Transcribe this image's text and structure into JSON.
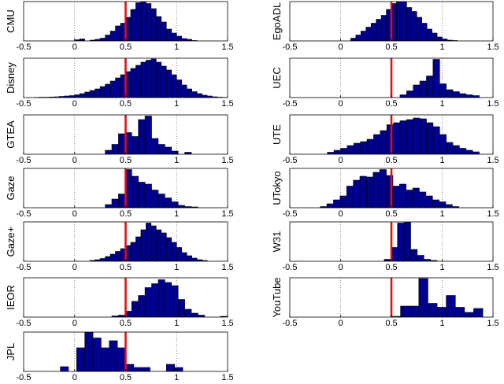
{
  "colors": {
    "bar_fill": "#00008f",
    "bar_edge": "#000000",
    "threshold_line": "#e01010",
    "grid": "#555555"
  },
  "chart_data": [
    {
      "type": "bar",
      "ylabel": "CMU",
      "xlim": [
        -0.5,
        1.5
      ],
      "ylim": [
        0,
        1
      ],
      "xticks": [
        "-0.5",
        "0",
        "0.5",
        "1",
        "1.5"
      ],
      "grid_x": [
        0,
        1
      ],
      "threshold": 0.5,
      "bin_width": 0.05,
      "x": [
        0.0,
        0.05,
        0.1,
        0.15,
        0.2,
        0.25,
        0.3,
        0.35,
        0.4,
        0.45,
        0.5,
        0.55,
        0.6,
        0.65,
        0.7,
        0.75,
        0.8,
        0.85,
        0.9,
        0.95,
        1.0,
        1.05,
        1.1,
        1.15
      ],
      "values": [
        0.03,
        0.05,
        0.0,
        0.02,
        0.04,
        0.07,
        0.15,
        0.25,
        0.38,
        0.45,
        0.6,
        0.8,
        0.97,
        1.0,
        0.95,
        0.82,
        0.62,
        0.48,
        0.3,
        0.2,
        0.12,
        0.06,
        0.04,
        0.01
      ]
    },
    {
      "type": "bar",
      "ylabel": "EgoADL",
      "xlim": [
        -0.5,
        1.5
      ],
      "ylim": [
        0,
        1
      ],
      "xticks": [
        "-0.5",
        "0",
        "0.5",
        "1",
        "1.5"
      ],
      "grid_x": [
        0,
        1
      ],
      "threshold": 0.5,
      "bin_width": 0.05,
      "x": [
        0.1,
        0.15,
        0.2,
        0.25,
        0.3,
        0.35,
        0.4,
        0.45,
        0.5,
        0.55,
        0.6,
        0.65,
        0.7,
        0.75,
        0.8,
        0.85,
        0.9,
        0.95,
        1.0,
        1.05,
        1.1
      ],
      "values": [
        0.07,
        0.15,
        0.25,
        0.35,
        0.45,
        0.55,
        0.65,
        0.8,
        0.95,
        1.0,
        1.0,
        0.85,
        0.75,
        0.6,
        0.45,
        0.3,
        0.2,
        0.1,
        0.05,
        0.02,
        0.01
      ]
    },
    {
      "type": "bar",
      "ylabel": "Disney",
      "xlim": [
        -0.5,
        1.5
      ],
      "ylim": [
        0,
        1
      ],
      "xticks": [
        "-0.5",
        "0",
        "0.5",
        "1",
        "1.5"
      ],
      "grid_x": [
        0,
        1
      ],
      "threshold": 0.5,
      "bin_width": 0.05,
      "x": [
        -0.4,
        -0.35,
        -0.3,
        -0.25,
        -0.2,
        -0.15,
        -0.1,
        -0.05,
        0.0,
        0.05,
        0.1,
        0.15,
        0.2,
        0.25,
        0.3,
        0.35,
        0.4,
        0.45,
        0.5,
        0.55,
        0.6,
        0.65,
        0.7,
        0.75,
        0.8,
        0.85,
        0.9,
        0.95,
        1.0,
        1.05,
        1.1,
        1.15,
        1.2,
        1.25,
        1.3,
        1.35,
        1.4,
        1.45
      ],
      "values": [
        0.005,
        0.01,
        0.01,
        0.015,
        0.02,
        0.03,
        0.04,
        0.05,
        0.07,
        0.1,
        0.14,
        0.18,
        0.22,
        0.28,
        0.34,
        0.42,
        0.5,
        0.58,
        0.66,
        0.74,
        0.82,
        0.9,
        0.95,
        0.98,
        0.9,
        0.8,
        0.7,
        0.58,
        0.45,
        0.32,
        0.22,
        0.15,
        0.1,
        0.06,
        0.04,
        0.02,
        0.01,
        0.005
      ]
    },
    {
      "type": "bar",
      "ylabel": "UEC",
      "xlim": [
        -0.5,
        1.5
      ],
      "ylim": [
        0,
        1
      ],
      "xticks": [
        "-0.5",
        "0",
        "0.5",
        "1",
        "1.5"
      ],
      "grid_x": [
        0,
        1
      ],
      "threshold": 0.5,
      "bin_width": 0.065,
      "x": [
        0.585,
        0.65,
        0.715,
        0.78,
        0.845,
        0.91,
        0.975,
        1.04,
        1.105,
        1.17,
        1.235,
        1.3
      ],
      "values": [
        0.07,
        0.17,
        0.32,
        0.42,
        0.55,
        0.97,
        0.35,
        0.2,
        0.15,
        0.1,
        0.07,
        0.05
      ]
    },
    {
      "type": "bar",
      "ylabel": "GTEA",
      "xlim": [
        -0.5,
        1.5
      ],
      "ylim": [
        0,
        1
      ],
      "xticks": [
        "-0.5",
        "0",
        "0.5",
        "1",
        "1.5"
      ],
      "grid_x": [
        0,
        1
      ],
      "threshold": 0.5,
      "bin_width": 0.065,
      "x": [
        0.3,
        0.365,
        0.43,
        0.495,
        0.56,
        0.625,
        0.69,
        0.755,
        0.82,
        0.885,
        0.95,
        1.015,
        1.08
      ],
      "values": [
        0.1,
        0.25,
        0.52,
        0.55,
        0.45,
        0.88,
        0.97,
        0.4,
        0.25,
        0.18,
        0.08,
        0.0,
        0.05
      ]
    },
    {
      "type": "bar",
      "ylabel": "UTE",
      "xlim": [
        -0.5,
        1.5
      ],
      "ylim": [
        0,
        1
      ],
      "xticks": [
        "-0.5",
        "0",
        "0.5",
        "1",
        "1.5"
      ],
      "grid_x": [
        0,
        1
      ],
      "threshold": 0.5,
      "bin_width": 0.065,
      "x": [
        -0.13,
        -0.065,
        0.0,
        0.065,
        0.13,
        0.195,
        0.26,
        0.325,
        0.39,
        0.455,
        0.52,
        0.585,
        0.65,
        0.715,
        0.78,
        0.845,
        0.91,
        0.975,
        1.04,
        1.105,
        1.17,
        1.235,
        1.3
      ],
      "values": [
        0.05,
        0.1,
        0.15,
        0.22,
        0.28,
        0.32,
        0.38,
        0.5,
        0.6,
        0.75,
        0.8,
        0.85,
        0.88,
        0.92,
        0.9,
        0.8,
        0.7,
        0.5,
        0.3,
        0.22,
        0.15,
        0.1,
        0.06
      ]
    },
    {
      "type": "bar",
      "ylabel": "Gaze",
      "xlim": [
        -0.5,
        1.5
      ],
      "ylim": [
        0,
        1
      ],
      "xticks": [
        "-0.5",
        "0",
        "0.5",
        "1",
        "1.5"
      ],
      "grid_x": [
        0,
        1
      ],
      "threshold": 0.5,
      "bin_width": 0.065,
      "x": [
        0.3,
        0.365,
        0.43,
        0.495,
        0.56,
        0.625,
        0.69,
        0.755,
        0.82,
        0.885,
        0.95,
        1.015,
        1.08,
        1.145
      ],
      "values": [
        0.08,
        0.22,
        0.35,
        0.97,
        0.8,
        0.65,
        0.6,
        0.45,
        0.35,
        0.25,
        0.15,
        0.06,
        0.03,
        0.02
      ]
    },
    {
      "type": "bar",
      "ylabel": "UTokyo",
      "xlim": [
        -0.5,
        1.5
      ],
      "ylim": [
        0,
        1
      ],
      "xticks": [
        "-0.5",
        "0",
        "0.5",
        "1",
        "1.5"
      ],
      "grid_x": [
        0,
        1
      ],
      "threshold": 0.5,
      "bin_width": 0.065,
      "x": [
        -0.2,
        -0.135,
        -0.07,
        -0.005,
        0.06,
        0.125,
        0.19,
        0.255,
        0.32,
        0.385,
        0.45,
        0.515,
        0.58,
        0.645,
        0.71,
        0.775,
        0.84,
        0.905,
        0.97,
        1.035,
        1.1
      ],
      "values": [
        0.03,
        0.1,
        0.2,
        0.3,
        0.55,
        0.7,
        0.8,
        0.78,
        0.9,
        0.97,
        0.82,
        0.55,
        0.6,
        0.45,
        0.5,
        0.4,
        0.3,
        0.2,
        0.15,
        0.08,
        0.03
      ]
    },
    {
      "type": "bar",
      "ylabel": "Gaze+",
      "xlim": [
        -0.5,
        1.5
      ],
      "ylim": [
        0,
        1
      ],
      "xticks": [
        "-0.5",
        "0",
        "0.5",
        "1",
        "1.5"
      ],
      "grid_x": [
        0,
        1
      ],
      "threshold": 0.5,
      "bin_width": 0.05,
      "x": [
        0.15,
        0.2,
        0.25,
        0.3,
        0.35,
        0.4,
        0.45,
        0.5,
        0.55,
        0.6,
        0.65,
        0.7,
        0.75,
        0.8,
        0.85,
        0.9,
        0.95,
        1.0,
        1.05,
        1.1,
        1.15,
        1.2,
        1.25
      ],
      "values": [
        0.02,
        0.04,
        0.07,
        0.12,
        0.18,
        0.25,
        0.32,
        0.4,
        0.48,
        0.62,
        0.8,
        0.97,
        0.9,
        0.8,
        0.72,
        0.6,
        0.48,
        0.35,
        0.22,
        0.14,
        0.08,
        0.04,
        0.02
      ]
    },
    {
      "type": "bar",
      "ylabel": "W31",
      "xlim": [
        -0.5,
        1.5
      ],
      "ylim": [
        0,
        1
      ],
      "xticks": [
        "-0.5",
        "0",
        "0.5",
        "1",
        "1.5"
      ],
      "grid_x": [
        0,
        1
      ],
      "threshold": 0.5,
      "bin_width": 0.065,
      "x": [
        0.43,
        0.495,
        0.56,
        0.625,
        0.69,
        0.755,
        0.82,
        0.885
      ],
      "values": [
        0.05,
        0.35,
        0.97,
        1.0,
        0.3,
        0.15,
        0.05,
        0.02
      ]
    },
    {
      "type": "bar",
      "ylabel": "IEOR",
      "xlim": [
        -0.5,
        1.5
      ],
      "ylim": [
        0,
        1
      ],
      "xticks": [
        "-0.5",
        "0",
        "0.5",
        "1",
        "1.5"
      ],
      "grid_x": [
        0,
        1
      ],
      "threshold": 0.5,
      "bin_width": 0.065,
      "x": [
        0.365,
        0.43,
        0.495,
        0.56,
        0.625,
        0.69,
        0.755,
        0.82,
        0.885,
        0.95,
        1.015,
        1.08,
        1.145,
        1.21,
        1.43
      ],
      "values": [
        0.03,
        0.05,
        0.15,
        0.4,
        0.55,
        0.75,
        0.85,
        0.95,
        0.88,
        0.8,
        0.45,
        0.2,
        0.1,
        0.05,
        0.02
      ]
    },
    {
      "type": "bar",
      "ylabel": "YouTube",
      "xlim": [
        -0.5,
        1.5
      ],
      "ylim": [
        0,
        1
      ],
      "xticks": [
        "-0.5",
        "0",
        "0.5",
        "1",
        "1.5"
      ],
      "grid_x": [
        0,
        1
      ],
      "threshold": 0.5,
      "bin_width": 0.09,
      "x": [
        0.5,
        0.59,
        0.68,
        0.77,
        0.86,
        0.95,
        1.04,
        1.13,
        1.22,
        1.31
      ],
      "values": [
        0.02,
        0.28,
        0.28,
        0.98,
        0.35,
        0.25,
        0.55,
        0.25,
        0.12,
        0.22
      ]
    },
    {
      "type": "bar",
      "ylabel": "JPL",
      "xlim": [
        -0.5,
        1.5
      ],
      "ylim": [
        0,
        1
      ],
      "xticks": [
        "-0.5",
        "0",
        "0.5",
        "1",
        "1.5"
      ],
      "grid_x": [
        0,
        1
      ],
      "threshold": 0.5,
      "bin_width": 0.08,
      "x": [
        -0.14,
        -0.06,
        0.02,
        0.1,
        0.18,
        0.26,
        0.34,
        0.42,
        0.5,
        0.58,
        0.66,
        0.74,
        0.82,
        0.9,
        0.98,
        1.06
      ],
      "values": [
        0.12,
        0.0,
        0.6,
        1.0,
        0.85,
        0.6,
        0.78,
        0.6,
        0.18,
        0.1,
        0.1,
        0.0,
        0.0,
        0.18,
        0.1,
        0.0
      ]
    }
  ]
}
